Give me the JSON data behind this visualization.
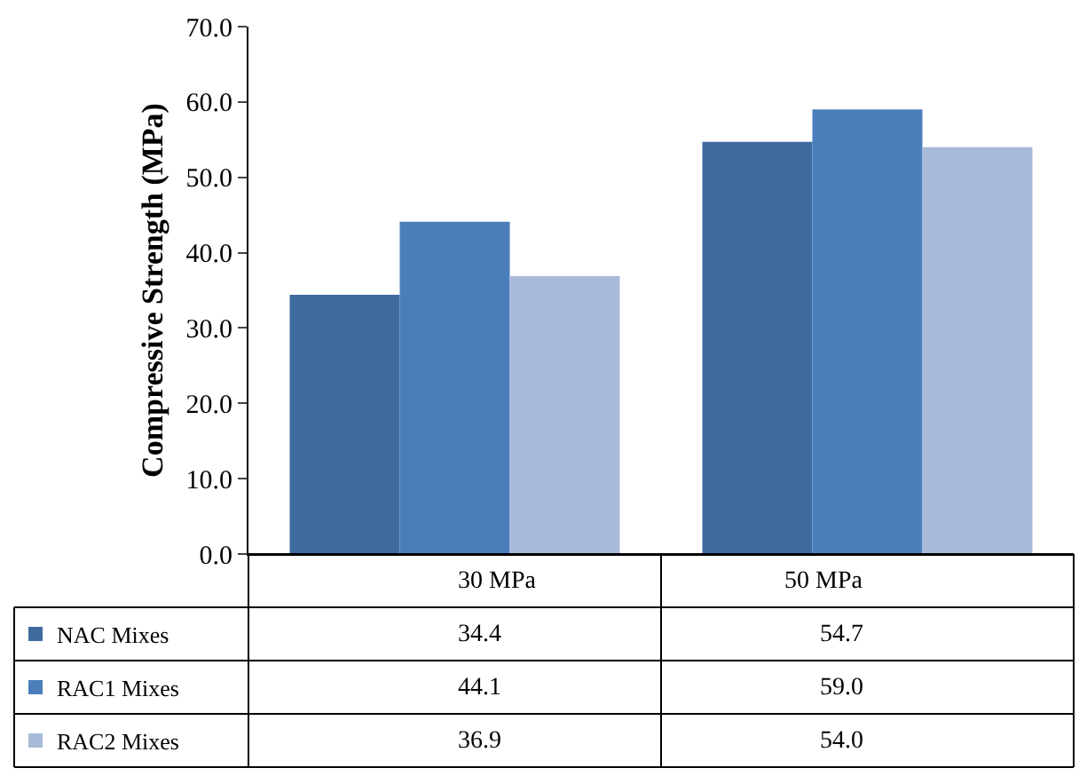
{
  "chart_data": {
    "type": "bar",
    "ylabel": "Compressive Strength (MPa)",
    "categories": [
      "30 MPa",
      "50 MPa"
    ],
    "series": [
      {
        "name": "NAC Mixes",
        "color": "#3f6a9e",
        "values": [
          34.4,
          54.7
        ]
      },
      {
        "name": "RAC1 Mixes",
        "color": "#4a7ebb",
        "values": [
          44.1,
          59.0
        ]
      },
      {
        "name": "RAC2 Mixes",
        "color": "#a9bad8",
        "values": [
          36.9,
          54.0
        ]
      }
    ],
    "value_labels": [
      [
        "34.4",
        "54.7"
      ],
      [
        "44.1",
        "59.0"
      ],
      [
        "36.9",
        "54.0"
      ]
    ],
    "ylim": [
      0,
      70
    ],
    "yticks": [
      {
        "value": 0,
        "label": "0.0"
      },
      {
        "value": 10,
        "label": "10.0"
      },
      {
        "value": 20,
        "label": "20.0"
      },
      {
        "value": 30,
        "label": "30.0"
      },
      {
        "value": 40,
        "label": "40.0"
      },
      {
        "value": 50,
        "label": "50.0"
      },
      {
        "value": 60,
        "label": "60.0"
      },
      {
        "value": 70,
        "label": "70.0"
      }
    ],
    "legend": "bottom left"
  }
}
